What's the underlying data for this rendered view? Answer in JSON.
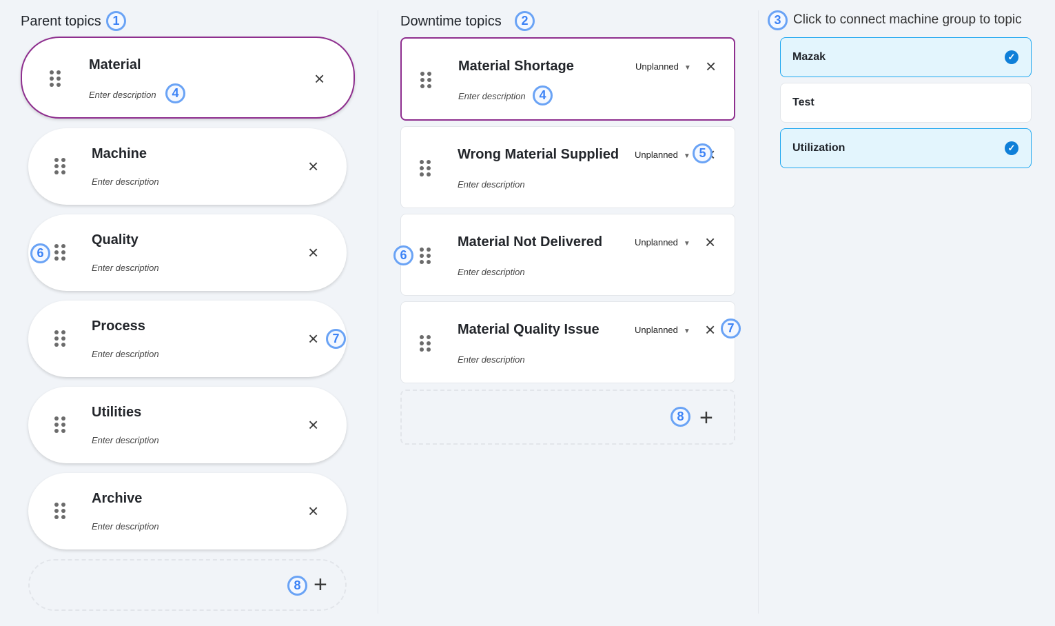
{
  "parent": {
    "heading": "Parent topics",
    "topics": [
      {
        "name": "Material",
        "description_placeholder": "Enter description"
      },
      {
        "name": "Machine",
        "description_placeholder": "Enter description"
      },
      {
        "name": "Quality",
        "description_placeholder": "Enter description"
      },
      {
        "name": "Process",
        "description_placeholder": "Enter description"
      },
      {
        "name": "Utilities",
        "description_placeholder": "Enter description"
      },
      {
        "name": "Archive",
        "description_placeholder": "Enter description"
      }
    ]
  },
  "downtime": {
    "heading": "Downtime topics",
    "topics": [
      {
        "name": "Material Shortage",
        "type": "Unplanned",
        "description_placeholder": "Enter description"
      },
      {
        "name": "Wrong Material Supplied",
        "type": "Unplanned",
        "description_placeholder": "Enter description"
      },
      {
        "name": "Material Not Delivered",
        "type": "Unplanned",
        "description_placeholder": "Enter description"
      },
      {
        "name": "Material Quality Issue",
        "type": "Unplanned",
        "description_placeholder": "Enter description"
      }
    ]
  },
  "groups": {
    "heading": "Click to connect machine group to topic",
    "items": [
      {
        "name": "Mazak",
        "connected": true
      },
      {
        "name": "Test",
        "connected": false
      },
      {
        "name": "Utilization",
        "connected": true
      }
    ]
  },
  "icons": {
    "close": "×",
    "add": "+",
    "check": "✓",
    "caret": "▼"
  },
  "callouts": [
    "1",
    "2",
    "3",
    "4",
    "4",
    "5",
    "6",
    "6",
    "7",
    "7",
    "8",
    "8"
  ],
  "colors": {
    "selected_border": "#8e2e8e",
    "callout": "#3b82f6",
    "connected_bg": "#e3f5fd",
    "check": "#0f7fd8"
  }
}
